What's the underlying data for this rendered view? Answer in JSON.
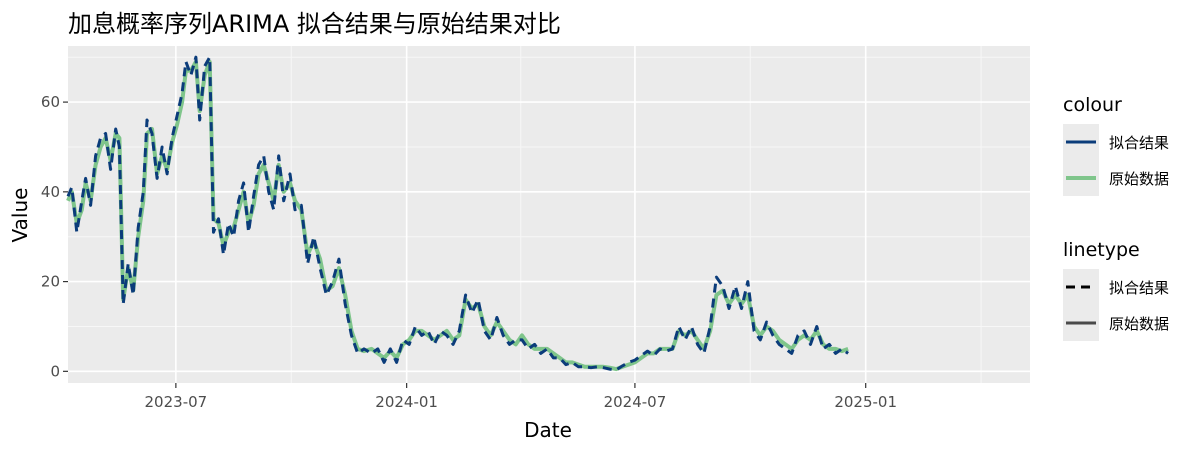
{
  "chart_data": {
    "type": "line",
    "title": "加息概率序列ARIMA 拟合结果与原始结果对比",
    "xlabel": "Date",
    "ylabel": "Value",
    "xlim": [
      "2023-04-06",
      "2025-05-12"
    ],
    "ylim": [
      -2.6,
      72.5
    ],
    "x_ticks": [
      {
        "date": "2023-07-01",
        "label": "2023-07"
      },
      {
        "date": "2024-01-01",
        "label": "2024-01"
      },
      {
        "date": "2024-07-01",
        "label": "2024-07"
      },
      {
        "date": "2025-01-01",
        "label": "2025-01"
      }
    ],
    "y_ticks": [
      0,
      20,
      40,
      60
    ],
    "grid": true,
    "legend": {
      "placement": "right",
      "colour": {
        "title": "colour",
        "entries": [
          {
            "label": "拟合结果",
            "color": "#0b3c7a"
          },
          {
            "label": "原始数据",
            "color": "#7fc58b"
          }
        ]
      },
      "linetype": {
        "title": "linetype",
        "entries": [
          {
            "label": "拟合结果",
            "style": "dashed"
          },
          {
            "label": "原始数据",
            "style": "solid"
          }
        ]
      }
    },
    "series": [
      {
        "name": "原始数据",
        "color": "#7fc58b",
        "style": "solid",
        "points": [
          [
            "2023-04-06",
            38
          ],
          [
            "2023-04-09",
            40
          ],
          [
            "2023-04-13",
            33
          ],
          [
            "2023-04-17",
            36
          ],
          [
            "2023-04-20",
            42
          ],
          [
            "2023-04-24",
            38
          ],
          [
            "2023-04-28",
            46
          ],
          [
            "2023-05-02",
            50
          ],
          [
            "2023-05-06",
            52
          ],
          [
            "2023-05-10",
            47
          ],
          [
            "2023-05-14",
            53
          ],
          [
            "2023-05-17",
            52
          ],
          [
            "2023-05-20",
            16
          ],
          [
            "2023-05-24",
            23
          ],
          [
            "2023-05-28",
            18
          ],
          [
            "2023-06-01",
            30
          ],
          [
            "2023-06-05",
            38
          ],
          [
            "2023-06-08",
            53
          ],
          [
            "2023-06-12",
            54
          ],
          [
            "2023-06-16",
            44
          ],
          [
            "2023-06-20",
            48
          ],
          [
            "2023-06-24",
            45
          ],
          [
            "2023-06-28",
            51
          ],
          [
            "2023-07-02",
            55
          ],
          [
            "2023-07-06",
            60
          ],
          [
            "2023-07-09",
            67
          ],
          [
            "2023-07-13",
            67
          ],
          [
            "2023-07-17",
            69
          ],
          [
            "2023-07-20",
            58
          ],
          [
            "2023-07-24",
            66
          ],
          [
            "2023-07-28",
            69
          ],
          [
            "2023-07-31",
            34
          ],
          [
            "2023-08-04",
            33
          ],
          [
            "2023-08-08",
            28
          ],
          [
            "2023-08-12",
            31
          ],
          [
            "2023-08-16",
            32
          ],
          [
            "2023-08-20",
            36
          ],
          [
            "2023-08-24",
            40
          ],
          [
            "2023-08-28",
            33
          ],
          [
            "2023-09-01",
            37
          ],
          [
            "2023-09-05",
            44
          ],
          [
            "2023-09-09",
            46
          ],
          [
            "2023-09-13",
            42
          ],
          [
            "2023-09-17",
            38
          ],
          [
            "2023-09-21",
            46
          ],
          [
            "2023-09-25",
            40
          ],
          [
            "2023-09-30",
            42
          ],
          [
            "2023-10-04",
            38
          ],
          [
            "2023-10-09",
            36
          ],
          [
            "2023-10-14",
            26
          ],
          [
            "2023-10-19",
            29
          ],
          [
            "2023-10-24",
            25
          ],
          [
            "2023-10-29",
            18
          ],
          [
            "2023-11-03",
            19
          ],
          [
            "2023-11-08",
            23
          ],
          [
            "2023-11-13",
            17
          ],
          [
            "2023-11-18",
            9
          ],
          [
            "2023-11-23",
            5
          ],
          [
            "2023-11-28",
            4.5
          ],
          [
            "2023-12-04",
            5
          ],
          [
            "2023-12-09",
            4
          ],
          [
            "2023-12-14",
            3
          ],
          [
            "2023-12-19",
            4.5
          ],
          [
            "2023-12-24",
            3
          ],
          [
            "2023-12-29",
            6
          ],
          [
            "2024-01-03",
            7
          ],
          [
            "2024-01-08",
            9
          ],
          [
            "2024-01-13",
            9
          ],
          [
            "2024-01-18",
            8
          ],
          [
            "2024-01-23",
            7
          ],
          [
            "2024-01-28",
            8
          ],
          [
            "2024-02-02",
            9
          ],
          [
            "2024-02-07",
            7
          ],
          [
            "2024-02-12",
            8
          ],
          [
            "2024-02-17",
            16
          ],
          [
            "2024-02-22",
            14
          ],
          [
            "2024-02-27",
            15
          ],
          [
            "2024-03-03",
            10
          ],
          [
            "2024-03-08",
            8
          ],
          [
            "2024-03-13",
            11
          ],
          [
            "2024-03-18",
            9
          ],
          [
            "2024-03-23",
            7
          ],
          [
            "2024-03-28",
            6
          ],
          [
            "2024-04-02",
            8
          ],
          [
            "2024-04-07",
            6
          ],
          [
            "2024-04-12",
            5
          ],
          [
            "2024-04-17",
            5
          ],
          [
            "2024-04-22",
            5
          ],
          [
            "2024-04-27",
            4
          ],
          [
            "2024-05-02",
            3
          ],
          [
            "2024-05-07",
            2
          ],
          [
            "2024-05-12",
            2
          ],
          [
            "2024-05-17",
            1.5
          ],
          [
            "2024-05-22",
            1
          ],
          [
            "2024-05-27",
            1
          ],
          [
            "2024-06-01",
            1
          ],
          [
            "2024-06-06",
            1
          ],
          [
            "2024-06-11",
            0.8
          ],
          [
            "2024-06-16",
            0.5
          ],
          [
            "2024-06-21",
            1
          ],
          [
            "2024-06-26",
            1.5
          ],
          [
            "2024-07-01",
            2
          ],
          [
            "2024-07-06",
            3
          ],
          [
            "2024-07-11",
            4
          ],
          [
            "2024-07-16",
            4
          ],
          [
            "2024-07-21",
            5
          ],
          [
            "2024-07-26",
            5
          ],
          [
            "2024-07-31",
            5
          ],
          [
            "2024-08-05",
            9
          ],
          [
            "2024-08-10",
            8
          ],
          [
            "2024-08-15",
            9
          ],
          [
            "2024-08-20",
            7
          ],
          [
            "2024-08-25",
            5
          ],
          [
            "2024-08-30",
            9
          ],
          [
            "2024-09-04",
            17
          ],
          [
            "2024-09-09",
            18
          ],
          [
            "2024-09-14",
            15
          ],
          [
            "2024-09-19",
            17
          ],
          [
            "2024-09-24",
            15
          ],
          [
            "2024-09-29",
            17
          ],
          [
            "2024-10-04",
            10
          ],
          [
            "2024-10-09",
            8
          ],
          [
            "2024-10-14",
            10
          ],
          [
            "2024-10-19",
            9
          ],
          [
            "2024-10-24",
            7
          ],
          [
            "2024-10-29",
            6
          ],
          [
            "2024-11-03",
            5
          ],
          [
            "2024-11-08",
            7
          ],
          [
            "2024-11-13",
            8
          ],
          [
            "2024-11-18",
            7
          ],
          [
            "2024-11-23",
            9
          ],
          [
            "2024-11-28",
            6
          ],
          [
            "2024-12-03",
            5
          ],
          [
            "2024-12-08",
            5
          ],
          [
            "2024-12-13",
            4.5
          ],
          [
            "2024-12-18",
            5
          ]
        ]
      },
      {
        "name": "拟合结果",
        "color": "#0b3c7a",
        "style": "dashed",
        "points": [
          [
            "2023-04-06",
            39
          ],
          [
            "2023-04-09",
            41
          ],
          [
            "2023-04-13",
            31
          ],
          [
            "2023-04-17",
            38
          ],
          [
            "2023-04-20",
            43
          ],
          [
            "2023-04-24",
            37
          ],
          [
            "2023-04-28",
            48
          ],
          [
            "2023-05-02",
            52
          ],
          [
            "2023-05-06",
            53
          ],
          [
            "2023-05-10",
            45
          ],
          [
            "2023-05-14",
            54
          ],
          [
            "2023-05-17",
            50
          ],
          [
            "2023-05-20",
            15
          ],
          [
            "2023-05-24",
            24
          ],
          [
            "2023-05-28",
            17
          ],
          [
            "2023-06-01",
            32
          ],
          [
            "2023-06-05",
            40
          ],
          [
            "2023-06-08",
            56
          ],
          [
            "2023-06-12",
            53
          ],
          [
            "2023-06-16",
            43
          ],
          [
            "2023-06-20",
            50
          ],
          [
            "2023-06-24",
            44
          ],
          [
            "2023-06-28",
            52
          ],
          [
            "2023-07-02",
            57
          ],
          [
            "2023-07-06",
            62
          ],
          [
            "2023-07-09",
            69
          ],
          [
            "2023-07-13",
            66
          ],
          [
            "2023-07-17",
            70
          ],
          [
            "2023-07-20",
            56
          ],
          [
            "2023-07-24",
            68
          ],
          [
            "2023-07-28",
            70
          ],
          [
            "2023-07-31",
            31
          ],
          [
            "2023-08-04",
            34
          ],
          [
            "2023-08-08",
            26
          ],
          [
            "2023-08-12",
            33
          ],
          [
            "2023-08-16",
            30
          ],
          [
            "2023-08-20",
            38
          ],
          [
            "2023-08-24",
            42
          ],
          [
            "2023-08-28",
            31
          ],
          [
            "2023-09-01",
            39
          ],
          [
            "2023-09-05",
            46
          ],
          [
            "2023-09-09",
            48
          ],
          [
            "2023-09-13",
            40
          ],
          [
            "2023-09-17",
            36
          ],
          [
            "2023-09-21",
            48
          ],
          [
            "2023-09-25",
            38
          ],
          [
            "2023-09-30",
            44
          ],
          [
            "2023-10-04",
            36
          ],
          [
            "2023-10-09",
            37
          ],
          [
            "2023-10-14",
            24
          ],
          [
            "2023-10-19",
            30
          ],
          [
            "2023-10-24",
            23
          ],
          [
            "2023-10-29",
            17
          ],
          [
            "2023-11-03",
            20
          ],
          [
            "2023-11-08",
            25
          ],
          [
            "2023-11-13",
            15
          ],
          [
            "2023-11-18",
            8
          ],
          [
            "2023-11-23",
            4
          ],
          [
            "2023-11-28",
            5
          ],
          [
            "2023-12-04",
            4
          ],
          [
            "2023-12-09",
            5
          ],
          [
            "2023-12-14",
            2
          ],
          [
            "2023-12-19",
            5
          ],
          [
            "2023-12-24",
            2
          ],
          [
            "2023-12-29",
            7
          ],
          [
            "2024-01-03",
            6
          ],
          [
            "2024-01-08",
            10
          ],
          [
            "2024-01-13",
            8
          ],
          [
            "2024-01-18",
            9
          ],
          [
            "2024-01-23",
            6
          ],
          [
            "2024-01-28",
            9
          ],
          [
            "2024-02-02",
            8
          ],
          [
            "2024-02-07",
            6
          ],
          [
            "2024-02-12",
            9
          ],
          [
            "2024-02-17",
            17
          ],
          [
            "2024-02-22",
            13
          ],
          [
            "2024-02-27",
            16
          ],
          [
            "2024-03-03",
            9
          ],
          [
            "2024-03-08",
            7
          ],
          [
            "2024-03-13",
            12
          ],
          [
            "2024-03-18",
            8
          ],
          [
            "2024-03-23",
            6
          ],
          [
            "2024-03-28",
            7
          ],
          [
            "2024-04-02",
            7
          ],
          [
            "2024-04-07",
            5
          ],
          [
            "2024-04-12",
            6
          ],
          [
            "2024-04-17",
            4
          ],
          [
            "2024-04-22",
            5
          ],
          [
            "2024-04-27",
            3
          ],
          [
            "2024-05-02",
            3
          ],
          [
            "2024-05-07",
            1.5
          ],
          [
            "2024-05-12",
            2
          ],
          [
            "2024-05-17",
            1
          ],
          [
            "2024-05-22",
            1
          ],
          [
            "2024-05-27",
            0.8
          ],
          [
            "2024-06-01",
            1
          ],
          [
            "2024-06-06",
            0.8
          ],
          [
            "2024-06-11",
            0.5
          ],
          [
            "2024-06-16",
            0.3
          ],
          [
            "2024-06-21",
            1.2
          ],
          [
            "2024-06-26",
            2
          ],
          [
            "2024-07-01",
            2.5
          ],
          [
            "2024-07-06",
            3.5
          ],
          [
            "2024-07-11",
            4.5
          ],
          [
            "2024-07-16",
            3.5
          ],
          [
            "2024-07-21",
            5
          ],
          [
            "2024-07-26",
            4.5
          ],
          [
            "2024-07-31",
            5
          ],
          [
            "2024-08-05",
            10
          ],
          [
            "2024-08-10",
            7
          ],
          [
            "2024-08-15",
            10
          ],
          [
            "2024-08-20",
            6
          ],
          [
            "2024-08-25",
            4
          ],
          [
            "2024-08-30",
            10
          ],
          [
            "2024-09-04",
            21
          ],
          [
            "2024-09-09",
            19
          ],
          [
            "2024-09-14",
            14
          ],
          [
            "2024-09-19",
            19
          ],
          [
            "2024-09-24",
            14
          ],
          [
            "2024-09-29",
            20
          ],
          [
            "2024-10-04",
            9
          ],
          [
            "2024-10-09",
            7
          ],
          [
            "2024-10-14",
            11
          ],
          [
            "2024-10-19",
            8
          ],
          [
            "2024-10-24",
            6
          ],
          [
            "2024-10-29",
            5
          ],
          [
            "2024-11-03",
            4
          ],
          [
            "2024-11-08",
            8
          ],
          [
            "2024-11-13",
            9
          ],
          [
            "2024-11-18",
            6
          ],
          [
            "2024-11-23",
            10
          ],
          [
            "2024-11-28",
            5
          ],
          [
            "2024-12-03",
            6
          ],
          [
            "2024-12-08",
            4
          ],
          [
            "2024-12-13",
            5
          ],
          [
            "2024-12-18",
            4
          ]
        ]
      }
    ]
  }
}
